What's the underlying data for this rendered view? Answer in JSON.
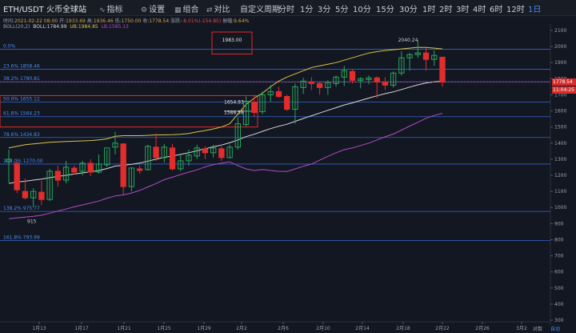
{
  "toolbar": {
    "title": "ETH/USDT 火币全球站",
    "buttons": [
      {
        "label": "指标",
        "icon": "indicator-icon"
      },
      {
        "label": "设置",
        "icon": "gear-icon"
      },
      {
        "label": "组合",
        "icon": "layout-icon"
      },
      {
        "label": "对比",
        "icon": "compare-icon"
      },
      {
        "label": "自定义周期",
        "icon": ""
      },
      {
        "label": "分时",
        "icon": ""
      }
    ],
    "timeframes": [
      "1分",
      "3分",
      "5分",
      "10分",
      "15分",
      "30分",
      "1时",
      "2时",
      "3时",
      "4时",
      "6时",
      "12时",
      "1日"
    ],
    "active_timeframe": "1日"
  },
  "info": {
    "time_label": "时间:",
    "time": "2021-02-22 08:00",
    "open_label": "开:",
    "open": "1933.69",
    "high_label": "高:",
    "high": "1936.46",
    "low_label": "低:",
    "low": "1750.00",
    "close_label": "收:",
    "close": "1778.54",
    "change_label": "涨跌:",
    "change": "-8.01%(-154.85)",
    "amp_label": "振幅:",
    "amp": "9.64%"
  },
  "boll": {
    "name": "BOLL(20,2)",
    "boll": "BOLL:1784.99",
    "ub": "UB:1984.85",
    "lb": "LB:1585.13"
  },
  "colors": {
    "background": "#131722",
    "up": "#26a65b",
    "down": "#e22d2d",
    "mid": "#d9d9d9",
    "upper": "#d9c34a",
    "lower": "#b04cc4",
    "fib": "#3a6fd8",
    "box": "#e02a2a"
  },
  "fib_labels": [
    {
      "label": "0.0%",
      "price": 1983.5
    },
    {
      "label": "23.6% 1858.46",
      "price": 1858.46
    },
    {
      "label": "38.2% 1780.81",
      "price": 1780.81
    },
    {
      "label": "50.0% 1655.12",
      "price": 1655.12
    },
    {
      "label": "61.8% 1564.23",
      "price": 1564.23
    },
    {
      "label": "78.6% 1434.83",
      "price": 1434.83
    },
    {
      "label": "100.0% 1270.00",
      "price": 1270.0
    },
    {
      "label": "138.2% 975.77",
      "price": 975.77
    },
    {
      "label": "161.8% 793.99",
      "price": 793.99
    }
  ],
  "annotations": {
    "box_top": "1983.00",
    "box_mid1": "1654.93",
    "box_mid2": "1588.58",
    "peak": "2040.24",
    "low": "915"
  },
  "y_ticks": [
    2100,
    2000,
    1900,
    1800,
    1700,
    1600,
    1500,
    1400,
    1300,
    1200,
    1100,
    1000,
    900,
    800,
    700,
    600,
    500,
    400,
    300
  ],
  "x_ticks": [
    {
      "label": "1月13",
      "x": 49
    },
    {
      "label": "1月17",
      "x": 102
    },
    {
      "label": "1月21",
      "x": 155
    },
    {
      "label": "1月25",
      "x": 205
    },
    {
      "label": "1月29",
      "x": 255
    },
    {
      "label": "2月2",
      "x": 302
    },
    {
      "label": "2月6",
      "x": 354
    },
    {
      "label": "2月10",
      "x": 404
    },
    {
      "label": "2月14",
      "x": 453
    },
    {
      "label": "2月18",
      "x": 504
    },
    {
      "label": "2月22",
      "x": 553
    },
    {
      "label": "2月26",
      "x": 603
    },
    {
      "label": "3月2",
      "x": 652
    }
  ],
  "price_tag": "1778.54",
  "time_tag": "11:04:25",
  "bottom_right": [
    "对数",
    "自动"
  ],
  "chart_data": {
    "type": "candlestick",
    "title": "ETH/USDT 火币全球站",
    "ylim": [
      300,
      2100
    ],
    "candles": [
      {
        "o": 1285,
        "h": 1360,
        "l": 1155,
        "c": 1300
      },
      {
        "o": 1275,
        "h": 1285,
        "l": 1090,
        "c": 1110
      },
      {
        "o": 1100,
        "h": 1180,
        "l": 1050,
        "c": 1060
      },
      {
        "o": 1060,
        "h": 1120,
        "l": 1000,
        "c": 1100
      },
      {
        "o": 1095,
        "h": 1165,
        "l": 1015,
        "c": 1050
      },
      {
        "o": 1050,
        "h": 1240,
        "l": 1040,
        "c": 1225
      },
      {
        "o": 1225,
        "h": 1260,
        "l": 1130,
        "c": 1170
      },
      {
        "o": 1170,
        "h": 1290,
        "l": 1150,
        "c": 1250
      },
      {
        "o": 1245,
        "h": 1260,
        "l": 1205,
        "c": 1220
      },
      {
        "o": 1225,
        "h": 1290,
        "l": 1200,
        "c": 1275
      },
      {
        "o": 1275,
        "h": 1300,
        "l": 1195,
        "c": 1220
      },
      {
        "o": 1220,
        "h": 1330,
        "l": 1210,
        "c": 1270
      },
      {
        "o": 1265,
        "h": 1360,
        "l": 1250,
        "c": 1370
      },
      {
        "o": 1375,
        "h": 1470,
        "l": 1330,
        "c": 1400
      },
      {
        "o": 1395,
        "h": 1400,
        "l": 1080,
        "c": 1130
      },
      {
        "o": 1130,
        "h": 1250,
        "l": 1100,
        "c": 1245
      },
      {
        "o": 1240,
        "h": 1260,
        "l": 1210,
        "c": 1230
      },
      {
        "o": 1235,
        "h": 1390,
        "l": 1230,
        "c": 1380
      },
      {
        "o": 1375,
        "h": 1460,
        "l": 1290,
        "c": 1310
      },
      {
        "o": 1310,
        "h": 1395,
        "l": 1280,
        "c": 1375
      },
      {
        "o": 1370,
        "h": 1395,
        "l": 1230,
        "c": 1240
      },
      {
        "o": 1240,
        "h": 1325,
        "l": 1225,
        "c": 1290
      },
      {
        "o": 1290,
        "h": 1360,
        "l": 1260,
        "c": 1325
      },
      {
        "o": 1320,
        "h": 1390,
        "l": 1300,
        "c": 1370
      },
      {
        "o": 1365,
        "h": 1380,
        "l": 1300,
        "c": 1340
      },
      {
        "o": 1340,
        "h": 1390,
        "l": 1310,
        "c": 1370
      },
      {
        "o": 1365,
        "h": 1380,
        "l": 1290,
        "c": 1310
      },
      {
        "o": 1310,
        "h": 1390,
        "l": 1305,
        "c": 1375
      },
      {
        "o": 1375,
        "h": 1560,
        "l": 1360,
        "c": 1520
      },
      {
        "o": 1515,
        "h": 1690,
        "l": 1505,
        "c": 1660
      },
      {
        "o": 1655,
        "h": 1700,
        "l": 1565,
        "c": 1590
      },
      {
        "o": 1595,
        "h": 1720,
        "l": 1580,
        "c": 1700
      },
      {
        "o": 1700,
        "h": 1760,
        "l": 1655,
        "c": 1720
      },
      {
        "o": 1720,
        "h": 1750,
        "l": 1680,
        "c": 1690
      },
      {
        "o": 1690,
        "h": 1700,
        "l": 1600,
        "c": 1610
      },
      {
        "o": 1610,
        "h": 1770,
        "l": 1520,
        "c": 1750
      },
      {
        "o": 1745,
        "h": 1805,
        "l": 1705,
        "c": 1785
      },
      {
        "o": 1780,
        "h": 1810,
        "l": 1730,
        "c": 1770
      },
      {
        "o": 1770,
        "h": 1780,
        "l": 1700,
        "c": 1745
      },
      {
        "o": 1745,
        "h": 1790,
        "l": 1700,
        "c": 1775
      },
      {
        "o": 1770,
        "h": 1820,
        "l": 1750,
        "c": 1810
      },
      {
        "o": 1810,
        "h": 1880,
        "l": 1755,
        "c": 1850
      },
      {
        "o": 1845,
        "h": 1860,
        "l": 1770,
        "c": 1790
      },
      {
        "o": 1790,
        "h": 1810,
        "l": 1740,
        "c": 1800
      },
      {
        "o": 1795,
        "h": 1820,
        "l": 1765,
        "c": 1805
      },
      {
        "o": 1805,
        "h": 1815,
        "l": 1680,
        "c": 1780
      },
      {
        "o": 1780,
        "h": 1810,
        "l": 1730,
        "c": 1760
      },
      {
        "o": 1760,
        "h": 1845,
        "l": 1745,
        "c": 1835
      },
      {
        "o": 1835,
        "h": 1970,
        "l": 1820,
        "c": 1930
      },
      {
        "o": 1930,
        "h": 1960,
        "l": 1850,
        "c": 1950
      },
      {
        "o": 1950,
        "h": 2040,
        "l": 1930,
        "c": 1960
      },
      {
        "o": 1960,
        "h": 1990,
        "l": 1850,
        "c": 1920
      },
      {
        "o": 1920,
        "h": 1975,
        "l": 1880,
        "c": 1945
      },
      {
        "o": 1933.69,
        "h": 1936.46,
        "l": 1750,
        "c": 1778.54
      }
    ],
    "boll_mid": [
      1150,
      1158,
      1163,
      1170,
      1176,
      1185,
      1193,
      1200,
      1208,
      1215,
      1222,
      1230,
      1242,
      1257,
      1262,
      1268,
      1276,
      1288,
      1300,
      1312,
      1320,
      1330,
      1340,
      1352,
      1365,
      1377,
      1388,
      1402,
      1420,
      1440,
      1455,
      1473,
      1490,
      1505,
      1517,
      1535,
      1553,
      1570,
      1587,
      1604,
      1620,
      1637,
      1650,
      1665,
      1680,
      1694,
      1707,
      1718,
      1733,
      1748,
      1762,
      1774,
      1781,
      1785
    ],
    "boll_upper": [
      1370,
      1380,
      1390,
      1395,
      1400,
      1405,
      1408,
      1410,
      1412,
      1414,
      1416,
      1420,
      1426,
      1442,
      1446,
      1446,
      1446,
      1448,
      1451,
      1451,
      1452,
      1455,
      1460,
      1470,
      1478,
      1488,
      1500,
      1520,
      1580,
      1640,
      1680,
      1710,
      1750,
      1785,
      1810,
      1830,
      1850,
      1870,
      1880,
      1890,
      1900,
      1915,
      1930,
      1945,
      1960,
      1968,
      1975,
      1980,
      1985,
      1990,
      1995,
      1994,
      1990,
      1985
    ],
    "boll_lower": [
      930,
      936,
      940,
      945,
      952,
      965,
      978,
      990,
      1004,
      1016,
      1028,
      1040,
      1058,
      1072,
      1078,
      1090,
      1106,
      1128,
      1149,
      1173,
      1188,
      1205,
      1220,
      1234,
      1252,
      1266,
      1276,
      1284,
      1260,
      1240,
      1230,
      1236,
      1230,
      1225,
      1224,
      1240,
      1256,
      1270,
      1294,
      1318,
      1340,
      1359,
      1370,
      1385,
      1400,
      1420,
      1439,
      1456,
      1481,
      1506,
      1529,
      1554,
      1572,
      1585
    ]
  }
}
